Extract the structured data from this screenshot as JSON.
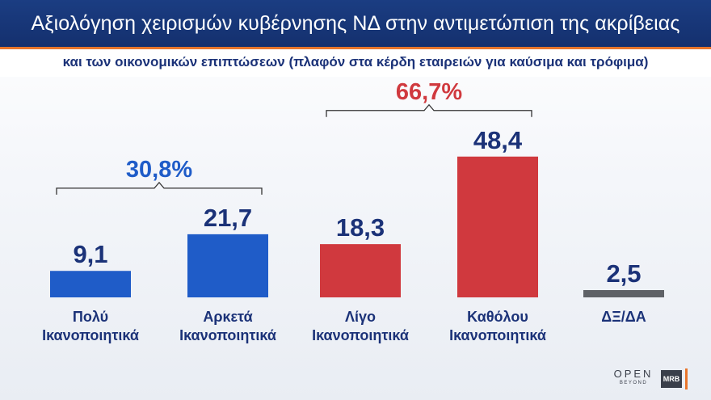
{
  "header": {
    "title": "Αξιολόγηση χειρισμών κυβέρνησης ΝΔ στην αντιμετώπιση της ακρίβειας",
    "subtitle": "και των οικονομικών επιπτώσεων (πλαφόν στα κέρδη εταιρειών για καύσιμα και τρόφιμα)"
  },
  "chart_data": {
    "type": "bar",
    "categories": [
      [
        "Πολύ",
        "Ικανοποιητικά"
      ],
      [
        "Αρκετά",
        "Ικανοποιητικά"
      ],
      [
        "Λίγο",
        "Ικανοποιητικά"
      ],
      [
        "Καθόλου",
        "Ικανοποιητικά"
      ],
      [
        "ΔΞ/ΔΑ"
      ]
    ],
    "values": [
      9.1,
      21.7,
      18.3,
      48.4,
      2.5
    ],
    "value_labels": [
      "9,1",
      "21,7",
      "18,3",
      "48,4",
      "2,5"
    ],
    "bar_colors": [
      "#1f5cc8",
      "#1f5cc8",
      "#d0393e",
      "#d0393e",
      "#5e6166"
    ],
    "groups": [
      {
        "label": "30,8%",
        "from": 0,
        "to": 1,
        "color": "#1f5cc8"
      },
      {
        "label": "66,7%",
        "from": 2,
        "to": 3,
        "color": "#d0393e"
      }
    ],
    "value_label_color": "#1b3278",
    "category_label_color": "#1b3278"
  },
  "branding": {
    "logo_open": "OPEN",
    "logo_open_sub": "BEYOND",
    "logo_mrb": "MRB"
  }
}
